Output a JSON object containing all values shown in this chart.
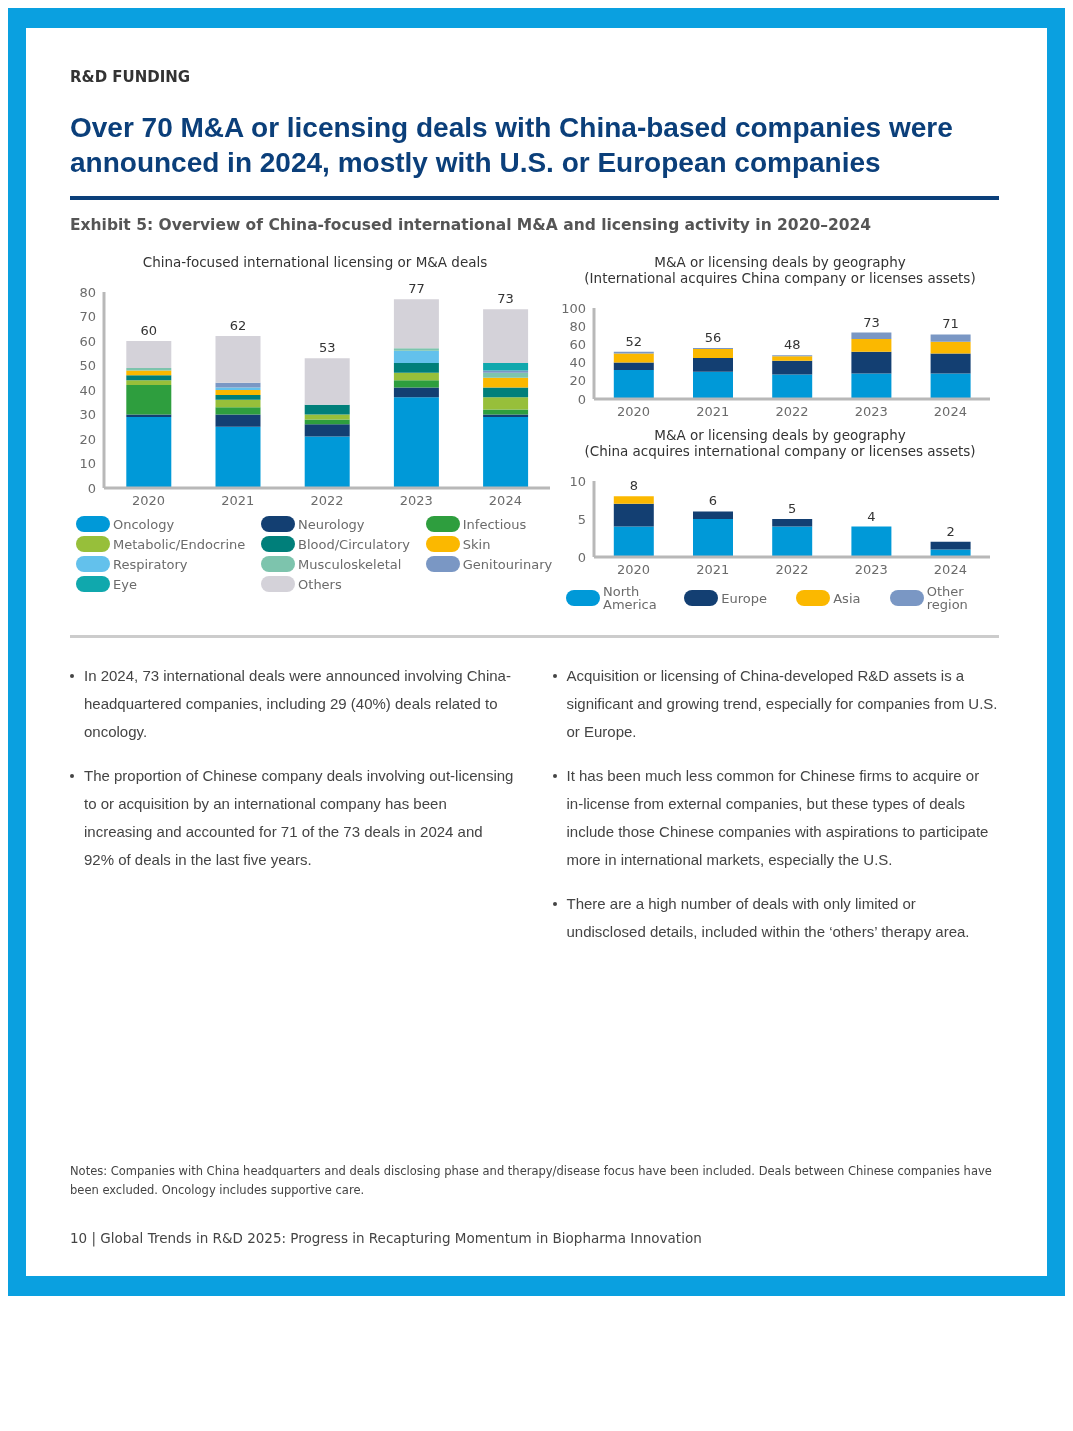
{
  "chart_data": [
    {
      "type": "other",
      "title": "Over 70 M&A or licensing deals with China-based companies were announced in 2024, mostly with U.S. or European companies",
      "annotations": [
        "R&D FUNDING",
        "Exhibit 5: Overview of China-focused international M&A and licensing activity in 2020–2024"
      ]
    },
    {
      "type": "bar",
      "stacked": true,
      "title": "China-focused international licensing or M&A deals",
      "categories": [
        "2020",
        "2021",
        "2022",
        "2023",
        "2024"
      ],
      "ylim": [
        0,
        80
      ],
      "yticks": [
        0,
        10,
        20,
        30,
        40,
        50,
        60,
        70,
        80
      ],
      "legend": "bottom",
      "totals": [
        "60",
        "62",
        "53",
        "77",
        "73"
      ],
      "series": [
        {
          "name": "Oncology",
          "color": "#0099d8",
          "values": [
            29,
            25,
            21,
            37,
            29
          ]
        },
        {
          "name": "Neurology",
          "color": "#133f72",
          "values": [
            1,
            5,
            5,
            4,
            1
          ]
        },
        {
          "name": "Infectious",
          "color": "#2e9e3e",
          "values": [
            12,
            3,
            2,
            3,
            2
          ]
        },
        {
          "name": "Metabolic/Endocrine",
          "color": "#97bf3a",
          "values": [
            2,
            3,
            2,
            3,
            5
          ]
        },
        {
          "name": "Blood/Circulatory",
          "color": "#007f7a",
          "values": [
            2,
            2,
            4,
            4,
            4
          ]
        },
        {
          "name": "Skin",
          "color": "#fbb800",
          "values": [
            2,
            2,
            0,
            0,
            4
          ]
        },
        {
          "name": "Respiratory",
          "color": "#63c1ec",
          "values": [
            0,
            1,
            0,
            5,
            0
          ]
        },
        {
          "name": "Musculoskeletal",
          "color": "#7dc4ad",
          "values": [
            1,
            0,
            0,
            1,
            2
          ]
        },
        {
          "name": "Genitourinary",
          "color": "#7a97c4",
          "values": [
            0,
            2,
            0,
            0,
            1
          ]
        },
        {
          "name": "Eye",
          "color": "#10a8ad",
          "values": [
            0,
            0,
            0,
            0,
            3
          ]
        },
        {
          "name": "Others",
          "color": "#d4d2d9",
          "values": [
            11,
            19,
            19,
            20,
            22
          ]
        }
      ]
    },
    {
      "type": "bar",
      "stacked": true,
      "title": "M&A or licensing deals by geography",
      "subtitle": "(International acquires China company or licenses assets)",
      "categories": [
        "2020",
        "2021",
        "2022",
        "2023",
        "2024"
      ],
      "ylim": [
        0,
        100
      ],
      "yticks": [
        0,
        20,
        40,
        60,
        80,
        100
      ],
      "totals": [
        "52",
        "56",
        "48",
        "73",
        "71"
      ],
      "series": [
        {
          "color": "#0099d8",
          "values": [
            32,
            30,
            27,
            28,
            28
          ]
        },
        {
          "color": "#133f72",
          "values": [
            8,
            15,
            15,
            24,
            22
          ]
        },
        {
          "color": "#fbb800",
          "values": [
            10,
            10,
            5,
            14,
            13
          ]
        },
        {
          "color": "#7a97c4",
          "values": [
            2,
            1,
            1,
            7,
            8
          ]
        }
      ]
    },
    {
      "type": "bar",
      "stacked": true,
      "title": "M&A or licensing deals by geography",
      "subtitle": "(China acquires international company or licenses assets)",
      "categories": [
        "2020",
        "2021",
        "2022",
        "2023",
        "2024"
      ],
      "ylim": [
        0,
        10
      ],
      "yticks": [
        0,
        5,
        10
      ],
      "legend": "bottom",
      "totals": [
        "8",
        "6",
        "5",
        "4",
        "2"
      ],
      "series": [
        {
          "name": "North America",
          "color": "#0099d8",
          "values": [
            4,
            5,
            4,
            4,
            1
          ]
        },
        {
          "name": "Europe",
          "color": "#133f72",
          "values": [
            3,
            1,
            1,
            0,
            1
          ]
        },
        {
          "name": "Asia",
          "color": "#fbb800",
          "values": [
            1,
            0,
            0,
            0,
            0
          ]
        },
        {
          "name": "Other region",
          "color": "#7a97c4",
          "values": [
            0,
            0,
            0,
            0,
            0
          ]
        }
      ]
    },
    {
      "type": "other",
      "annotations": [
        "In 2024, 73 international deals were announced involving China-headquartered companies, including 29 (40%)  deals related to oncology.",
        "The proportion of Chinese company deals involving out-licensing to or acquisition by an international company has been increasing and accounted for 71 of the 73 deals in 2024 and 92% of deals in the last five years.",
        "Acquisition or licensing of China-developed R&D assets is a significant and growing trend, especially for companies from U.S. or Europe.",
        "It has been much less common for Chinese firms to acquire or in-license from external companies, but these types of deals include those Chinese companies with aspirations to participate more in international markets, especially the U.S.",
        "There are a high number of deals with only limited or undisclosed details, included within the ‘others’ therapy area.",
        "Notes: Companies with China headquarters and deals disclosing phase and therapy/disease focus have been included. Deals between Chinese companies have been excluded. Oncology includes supportive care.",
        "10  |  Global Trends in R&D 2025: Progress in Recapturing Momentum in Biopharma Innovation"
      ]
    }
  ]
}
